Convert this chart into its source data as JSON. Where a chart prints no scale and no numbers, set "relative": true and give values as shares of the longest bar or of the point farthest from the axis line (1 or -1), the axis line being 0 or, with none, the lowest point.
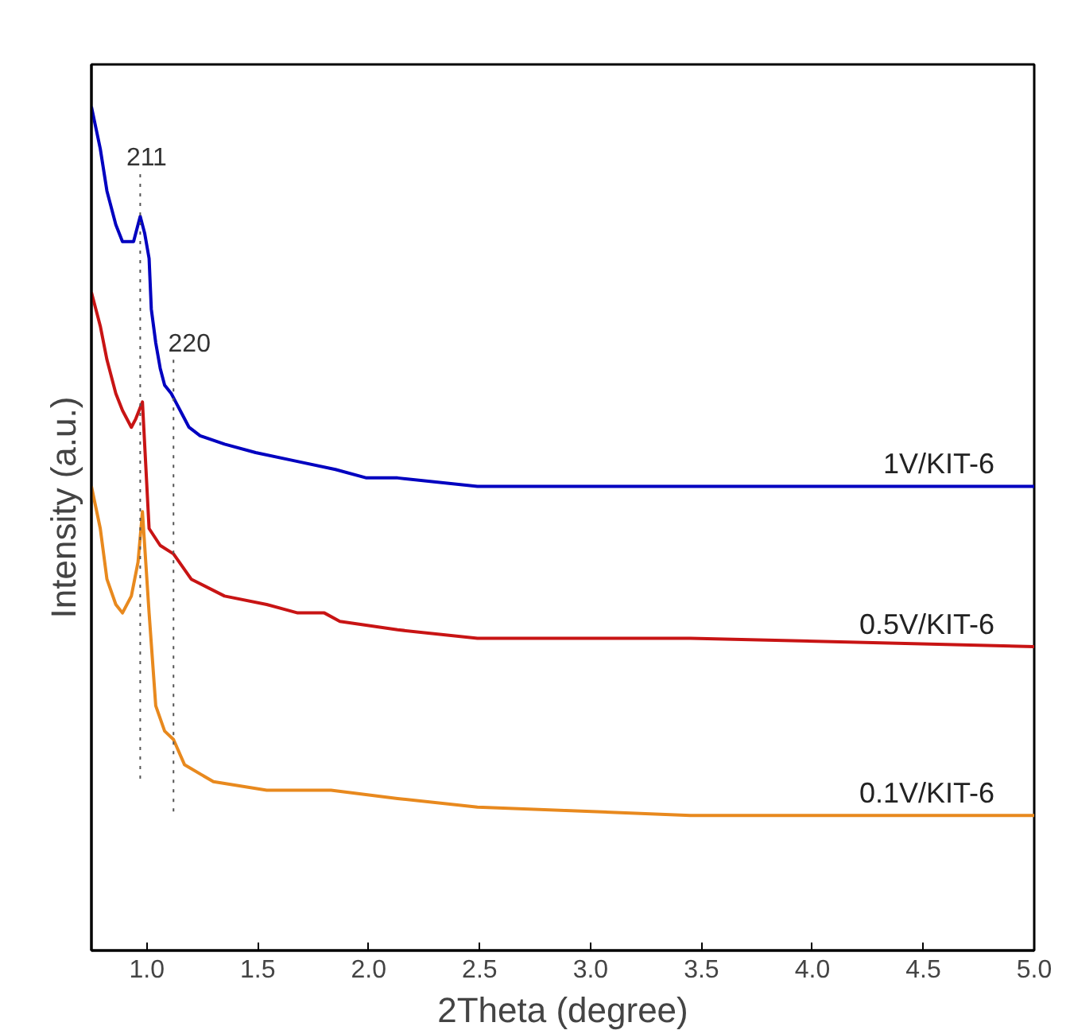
{
  "chart_data": {
    "type": "line",
    "xlabel": "2Theta (degree)",
    "ylabel": "Intensity (a.u.)",
    "relative": true,
    "grid": false,
    "line_style": "solid",
    "marker": "none",
    "xlim": [
      0.75,
      5.0
    ],
    "xticks": [
      {
        "value": 1,
        "label": "1.0"
      },
      1.5,
      {
        "value": 2,
        "label": "2.0"
      },
      2.5,
      {
        "value": 3,
        "label": "3.0"
      },
      3.5,
      {
        "value": 4,
        "label": "4.0"
      },
      4.5,
      {
        "value": 5,
        "label": "5.0"
      }
    ],
    "series": [
      {
        "name": "1V/KIT-6",
        "color": "#0000c0",
        "x": [
          0.75,
          0.79,
          0.82,
          0.86,
          0.89,
          0.92,
          0.94,
          0.97,
          0.99,
          1.01,
          1.02,
          1.04,
          1.06,
          1.08,
          1.11,
          1.13,
          1.15,
          1.19,
          1.24,
          1.35,
          1.49,
          1.67,
          1.85,
          1.99,
          2.13,
          2.49,
          3.21,
          3.93,
          5.0
        ],
        "values": [
          1.0,
          0.95,
          0.9,
          0.86,
          0.84,
          0.84,
          0.84,
          0.87,
          0.85,
          0.82,
          0.76,
          0.72,
          0.69,
          0.67,
          0.66,
          0.65,
          0.64,
          0.62,
          0.61,
          0.6,
          0.59,
          0.58,
          0.57,
          0.56,
          0.56,
          0.55,
          0.55,
          0.55,
          0.55
        ]
      },
      {
        "name": "0.5V/KIT-6",
        "color": "#c81414",
        "x": [
          0.75,
          0.79,
          0.82,
          0.86,
          0.89,
          0.93,
          0.95,
          0.98,
          1.01,
          1.06,
          1.12,
          1.2,
          1.35,
          1.54,
          1.68,
          1.8,
          1.87,
          2.13,
          2.49,
          3.45,
          5.0
        ],
        "values": [
          0.78,
          0.74,
          0.7,
          0.66,
          0.64,
          0.62,
          0.63,
          0.65,
          0.5,
          0.48,
          0.47,
          0.44,
          0.42,
          0.41,
          0.4,
          0.4,
          0.39,
          0.38,
          0.37,
          0.37,
          0.36
        ]
      },
      {
        "name": "0.1V/KIT-6",
        "color": "#e8891e",
        "x": [
          0.75,
          0.79,
          0.82,
          0.86,
          0.89,
          0.93,
          0.96,
          0.98,
          1.01,
          1.04,
          1.08,
          1.12,
          1.17,
          1.3,
          1.54,
          1.78,
          1.83,
          2.13,
          2.49,
          3.45,
          5.0
        ],
        "values": [
          0.55,
          0.5,
          0.44,
          0.41,
          0.4,
          0.42,
          0.46,
          0.52,
          0.4,
          0.29,
          0.26,
          0.25,
          0.22,
          0.2,
          0.19,
          0.19,
          0.19,
          0.18,
          0.17,
          0.16,
          0.16
        ]
      }
    ],
    "annotations": [
      {
        "text": "211",
        "x": 0.97,
        "y": 0.87
      },
      {
        "text": "220",
        "x": 1.12,
        "y": 0.65
      }
    ]
  }
}
